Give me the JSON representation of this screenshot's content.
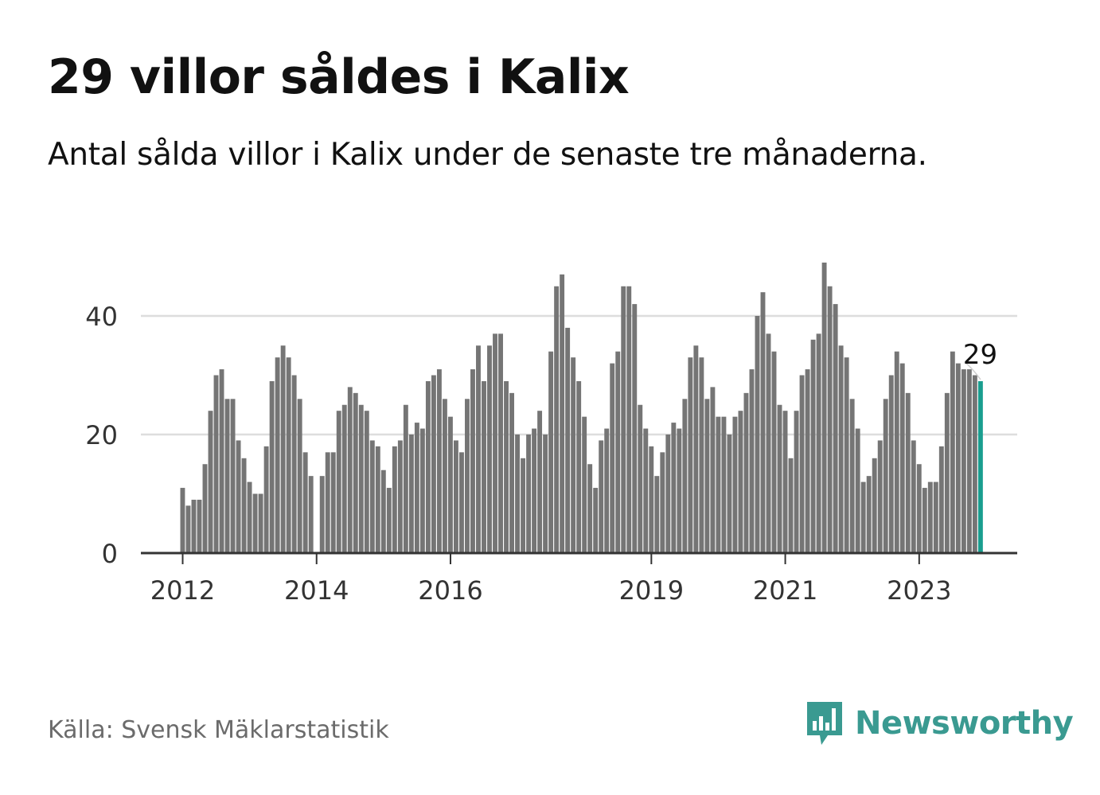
{
  "title": "29 villor såldes i Kalix",
  "subtitle": "Antal sålda villor i Kalix under de senaste tre månaderna.",
  "source": "Källa: Svensk Mäklarstatistik",
  "brand": "Newsworthy",
  "colors": {
    "bar": "#757575",
    "highlight": "#1a9e8f",
    "grid": "#dddddd",
    "axis": "#333333",
    "brand": "#3a9a91"
  },
  "chart_data": {
    "type": "bar",
    "title": "29 villor såldes i Kalix",
    "xlabel": "",
    "ylabel": "",
    "ylim": [
      0,
      50
    ],
    "yticks": [
      0,
      20,
      40
    ],
    "xticks": [
      {
        "label": "2012",
        "index": 0
      },
      {
        "label": "2014",
        "index": 24
      },
      {
        "label": "2016",
        "index": 48
      },
      {
        "label": "2019",
        "index": 84
      },
      {
        "label": "2021",
        "index": 108
      },
      {
        "label": "2023",
        "index": 132
      }
    ],
    "start": "2012-01",
    "values": [
      11,
      8,
      9,
      9,
      15,
      24,
      30,
      31,
      26,
      26,
      19,
      16,
      12,
      10,
      10,
      18,
      29,
      33,
      35,
      33,
      30,
      26,
      17,
      13,
      null,
      13,
      17,
      17,
      24,
      25,
      28,
      27,
      25,
      24,
      19,
      18,
      14,
      11,
      18,
      19,
      25,
      20,
      22,
      21,
      29,
      30,
      31,
      26,
      23,
      19,
      17,
      26,
      31,
      35,
      29,
      35,
      37,
      37,
      29,
      27,
      20,
      16,
      20,
      21,
      24,
      20,
      34,
      45,
      47,
      38,
      33,
      29,
      23,
      15,
      11,
      19,
      21,
      32,
      34,
      45,
      45,
      42,
      25,
      21,
      18,
      13,
      17,
      20,
      22,
      21,
      26,
      33,
      35,
      33,
      26,
      28,
      23,
      23,
      20,
      23,
      24,
      27,
      31,
      40,
      44,
      37,
      34,
      25,
      24,
      16,
      24,
      30,
      31,
      36,
      37,
      49,
      45,
      42,
      35,
      33,
      26,
      21,
      12,
      13,
      16,
      19,
      26,
      30,
      34,
      32,
      27,
      19,
      15,
      11,
      12,
      12,
      18,
      27,
      34,
      32,
      31,
      31,
      30,
      29
    ],
    "highlight_index": 143,
    "annotation": "29"
  }
}
